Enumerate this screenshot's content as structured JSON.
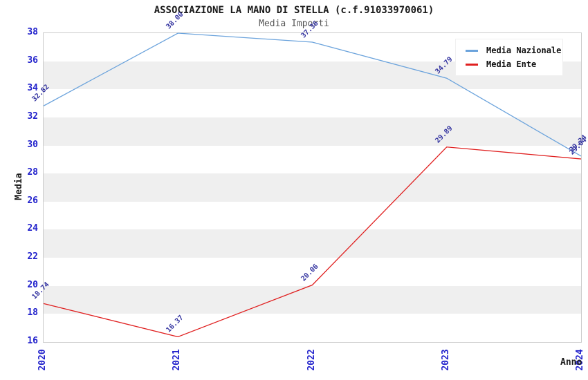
{
  "title": "ASSOCIAZIONE LA MANO DI STELLA (c.f.91033970061)",
  "subtitle": "Media Importi",
  "axes": {
    "x_label": "Anno",
    "y_label": "Media"
  },
  "legend": {
    "items": [
      {
        "label": "Media Nazionale",
        "color": "#6ba3dc"
      },
      {
        "label": "Media Ente",
        "color": "#e02020"
      }
    ]
  },
  "chart_data": {
    "type": "line",
    "x": [
      2020,
      2021,
      2022,
      2023,
      2024
    ],
    "series": [
      {
        "name": "Media Nazionale",
        "color": "#6ba3dc",
        "values": [
          32.82,
          38.0,
          37.36,
          34.79,
          29.24
        ]
      },
      {
        "name": "Media Ente",
        "color": "#e02020",
        "values": [
          18.74,
          16.37,
          20.06,
          29.89,
          29.04
        ]
      }
    ],
    "title": "ASSOCIAZIONE LA MANO DI STELLA (c.f.91033970061)",
    "subtitle": "Media Importi",
    "xlabel": "Anno",
    "ylabel": "Media",
    "ylim": [
      16,
      38
    ],
    "ytick_step": 2,
    "value_label_decimals": 2,
    "legend_position": "top-right",
    "grid": "alternating-horizontal-bands",
    "colors": {
      "tick_label": "#2323cc",
      "data_label": "#3434a0",
      "band_gray": "#efefef",
      "band_white": "#ffffff",
      "plot_border": "#cccccc"
    }
  }
}
